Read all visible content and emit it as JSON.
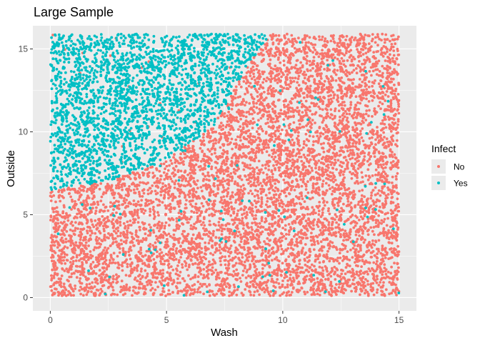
{
  "chart_data": {
    "type": "scatter",
    "title": "Large Sample",
    "xlabel": "Wash",
    "ylabel": "Outside",
    "xlim": [
      -0.75,
      15.75
    ],
    "ylim": [
      -0.8,
      16.4
    ],
    "x_ticks": [
      0,
      5,
      10,
      15
    ],
    "y_ticks": [
      0,
      5,
      10,
      15
    ],
    "x_tick_labels": [
      "0",
      "5",
      "10",
      "15"
    ],
    "y_tick_labels": [
      "0",
      "5",
      "10",
      "15"
    ],
    "grid": true,
    "legend": {
      "title": "Infect",
      "position": "right",
      "entries": [
        {
          "label": "No",
          "color": "#F8766D"
        },
        {
          "label": "Yes",
          "color": "#00BFC4"
        }
      ]
    },
    "x_range": [
      0,
      15
    ],
    "y_range": [
      0.1,
      15.9
    ],
    "boundary": [
      [
        0,
        6.5
      ],
      [
        2.5,
        7.0
      ],
      [
        5.0,
        8.3
      ],
      [
        7.0,
        10.3
      ],
      [
        8.5,
        14.0
      ],
      [
        9.5,
        16.0
      ]
    ],
    "series": [
      {
        "name": "No",
        "color": "#F8766D",
        "region": "below-boundary",
        "approx_count": 6200,
        "stray_fraction": 0.012
      },
      {
        "name": "Yes",
        "color": "#00BFC4",
        "region": "above-boundary",
        "approx_count": 3600,
        "stray_fraction": 0.012
      }
    ],
    "colors": {
      "panel_background": "#EBEBEB",
      "grid_major": "#FFFFFF",
      "tick_color": "#333333"
    }
  }
}
